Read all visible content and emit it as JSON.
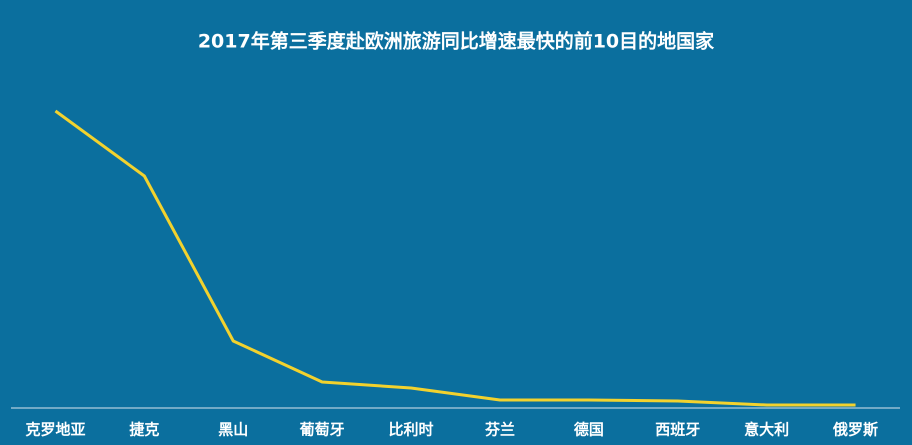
{
  "chart_data": {
    "type": "line",
    "title": "2017年第三季度赴欧洲旅游同比增速最快的前10目的地国家",
    "categories": [
      "克罗地亚",
      "捷克",
      "黑山",
      "葡萄牙",
      "比利时",
      "芬兰",
      "德国",
      "西班牙",
      "意大利",
      "俄罗斯"
    ],
    "values": [
      297,
      232,
      67,
      26,
      20,
      8,
      8,
      7,
      3,
      3
    ],
    "color": "#f2d22e",
    "ylim": [
      0,
      330
    ]
  }
}
